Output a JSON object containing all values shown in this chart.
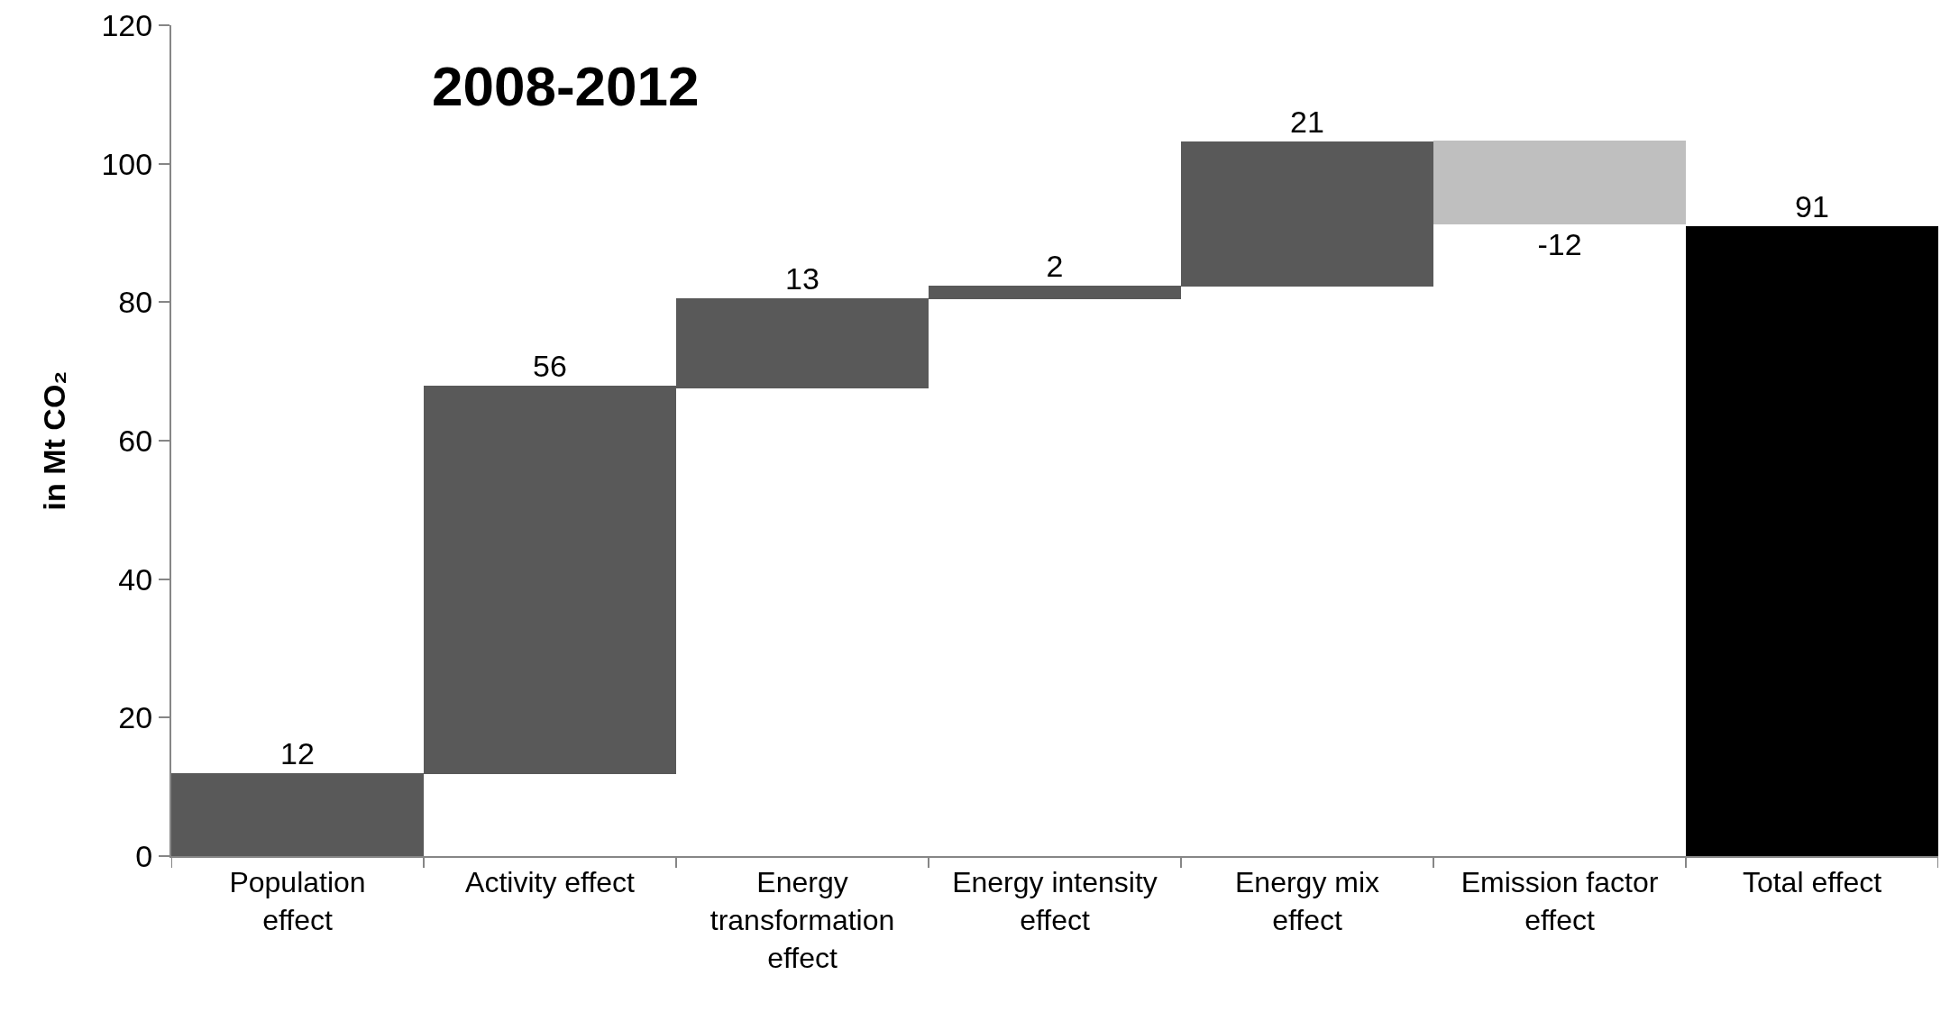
{
  "chart_data": {
    "type": "bar",
    "title": "2008-2012",
    "ylabel": "in Mt CO₂",
    "categories": [
      "Population effect",
      "Activity effect",
      "Energy transformation effect",
      "Energy intensity effect",
      "Energy mix effect",
      "Emission factor effect",
      "Total effect"
    ],
    "values": [
      12,
      56,
      13,
      2,
      21,
      -12,
      91
    ],
    "base": [
      0,
      11.9,
      67.5,
      80.4,
      82.2,
      103.3,
      0
    ],
    "colors": [
      "#595959",
      "#595959",
      "#595959",
      "#595959",
      "#595959",
      "#bfbfbf",
      "#000000"
    ],
    "ylim": [
      0,
      120
    ],
    "yticks": [
      0,
      20,
      40,
      60,
      80,
      100,
      120
    ],
    "grid": false,
    "legend": false,
    "data_labels": true
  }
}
